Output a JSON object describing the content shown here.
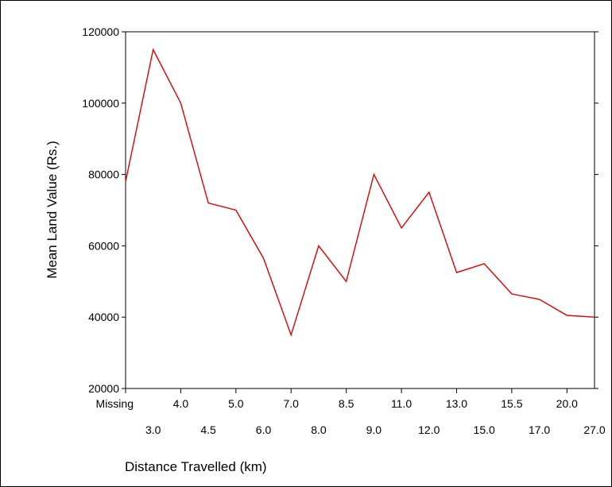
{
  "chart_data": {
    "type": "line",
    "title": "",
    "xlabel": "Distance Travelled (km)",
    "ylabel": "Mean Land Value (Rs.)",
    "ylim": [
      20000,
      120000
    ],
    "yticks": [
      20000,
      40000,
      60000,
      80000,
      100000,
      120000
    ],
    "categories": [
      "Missing",
      "3.0",
      "4.0",
      "4.5",
      "5.0",
      "6.0",
      "7.0",
      "8.0",
      "8.5",
      "9.0",
      "11.0",
      "12.0",
      "13.0",
      "15.0",
      "15.5",
      "17.0",
      "20.0",
      "27.0"
    ],
    "values": [
      78000,
      115000,
      100000,
      72000,
      70000,
      56500,
      35000,
      60000,
      50000,
      80000,
      65000,
      75000,
      52500,
      55000,
      46500,
      45000,
      40500,
      40000
    ],
    "line_color": "#e00000",
    "grid": false,
    "legend": "none"
  }
}
